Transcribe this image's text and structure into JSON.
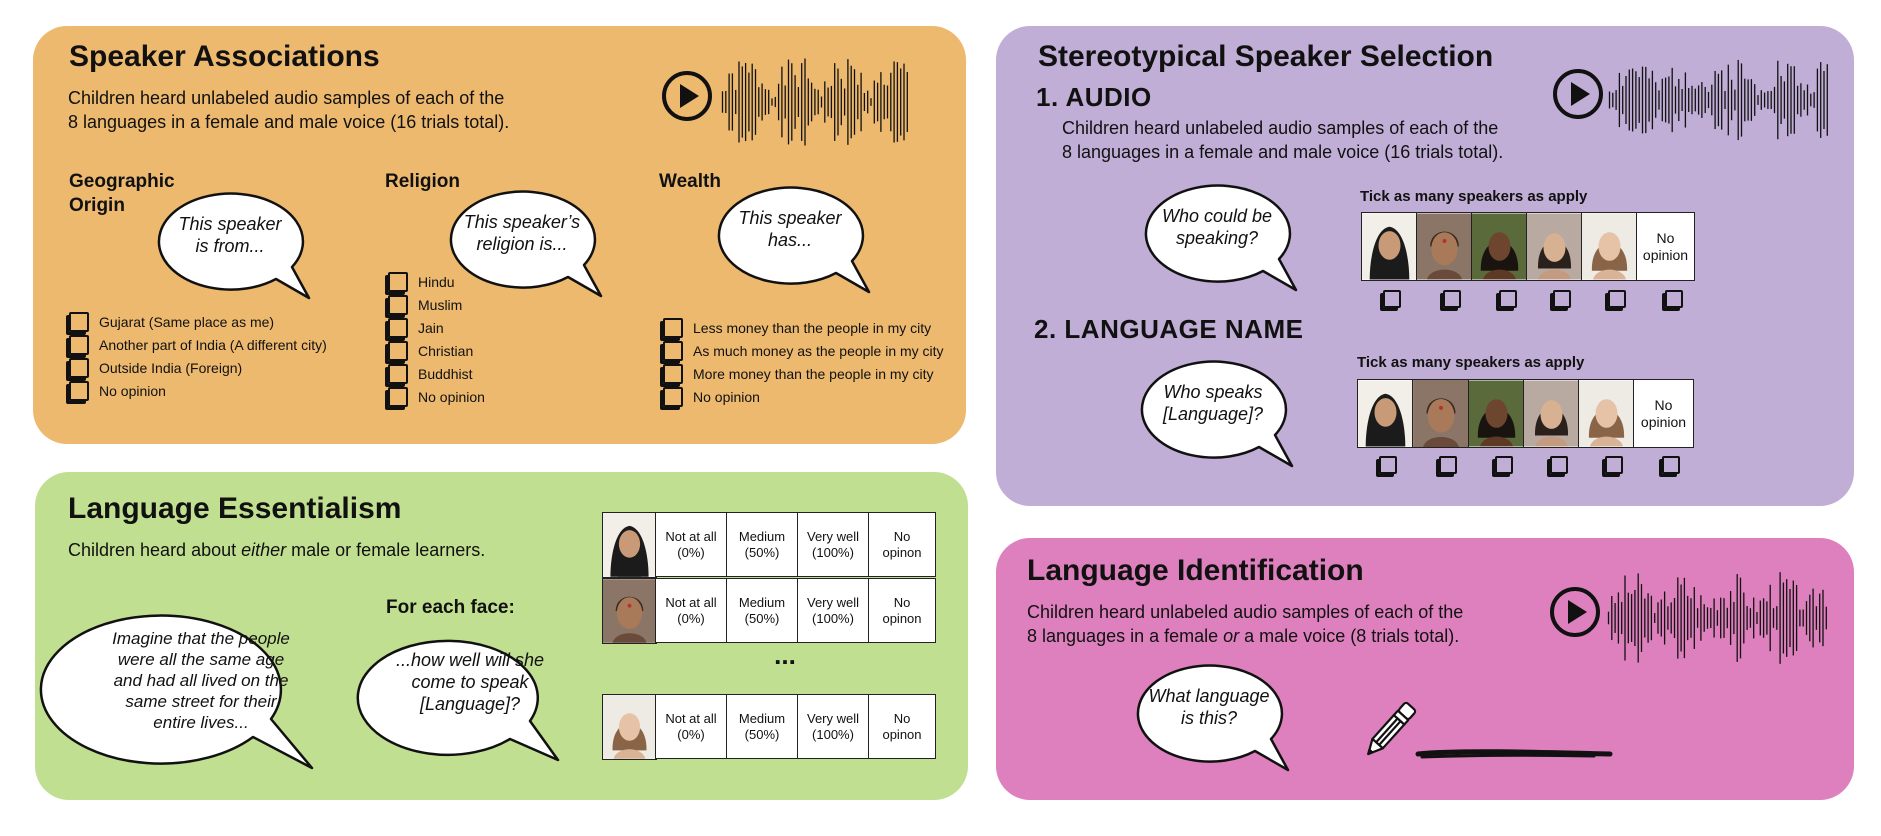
{
  "associations": {
    "title": "Speaker Associations",
    "desc_line1": "Children heard unlabeled audio samples of each of the",
    "desc_line2": "8 languages in a female and male voice (16 trials total).",
    "geo": {
      "heading_line1": "Geographic",
      "heading_line2": "Origin",
      "bubble_line1": "This speaker",
      "bubble_line2": "is from...",
      "options": [
        "Gujarat (Same place as me)",
        "Another part of India (A different city)",
        "Outside India (Foreign)",
        "No opinion"
      ]
    },
    "religion": {
      "heading": "Religion",
      "bubble_line1": "This speaker’s",
      "bubble_line2": "religion is...",
      "options": [
        "Hindu",
        "Muslim",
        "Jain",
        "Christian",
        "Buddhist",
        "No opinion"
      ]
    },
    "wealth": {
      "heading": "Wealth",
      "bubble_line1": "This speaker",
      "bubble_line2": "has...",
      "options": [
        "Less money than the people in my city",
        "As much money as the people in my city",
        "More money than the people in my city",
        "No opinion"
      ]
    }
  },
  "essentialism": {
    "title": "Language Essentialism",
    "desc_pre": "Children heard about ",
    "desc_em": "either",
    "desc_post": " male or female learners.",
    "bubble1": [
      "Imagine that the people",
      "were all the same age",
      "and had all lived on the",
      "same street for their",
      "entire lives..."
    ],
    "for_each": "For each face:",
    "bubble2": [
      "...how well will she",
      "come to speak",
      "[Language]?"
    ],
    "scale": [
      {
        "line1": "Not at all",
        "line2": "(0%)"
      },
      {
        "line1": "Medium",
        "line2": "(50%)"
      },
      {
        "line1": "Very well",
        "line2": "(100%)"
      },
      {
        "line1": "No",
        "line2": "opinon"
      }
    ],
    "ellipsis": "..."
  },
  "selection": {
    "title": "Stereotypical Speaker Selection",
    "step1": "1. AUDIO",
    "desc_line1": "Children heard unlabeled audio samples of each of the",
    "desc_line2": "8 languages in a female and male voice (16 trials total).",
    "bubble1_line1": "Who could be",
    "bubble1_line2": "speaking?",
    "tick_label": "Tick as many speakers as apply",
    "no_opinion_line1": "No",
    "no_opinion_line2": "opinion",
    "step2": "2. LANGUAGE NAME",
    "bubble2_line1": "Who speaks",
    "bubble2_line2": "[Language]?"
  },
  "identification": {
    "title": "Language Identification",
    "desc_line1": "Children heard unlabeled audio samples of each of the",
    "desc_pre": "8 languages in a female ",
    "desc_em": "or",
    "desc_post": " a male voice (8 trials total).",
    "bubble_line1": "What language",
    "bubble_line2": "is this?"
  },
  "colors": {
    "orange": "#EDB96F",
    "purple": "#C0AED6",
    "green": "#C1DF90",
    "pink": "#DE80BD"
  },
  "icons": [
    "play-icon",
    "waveform-icon",
    "pencil-icon",
    "checkbox-icon",
    "face-portrait-icon"
  ]
}
